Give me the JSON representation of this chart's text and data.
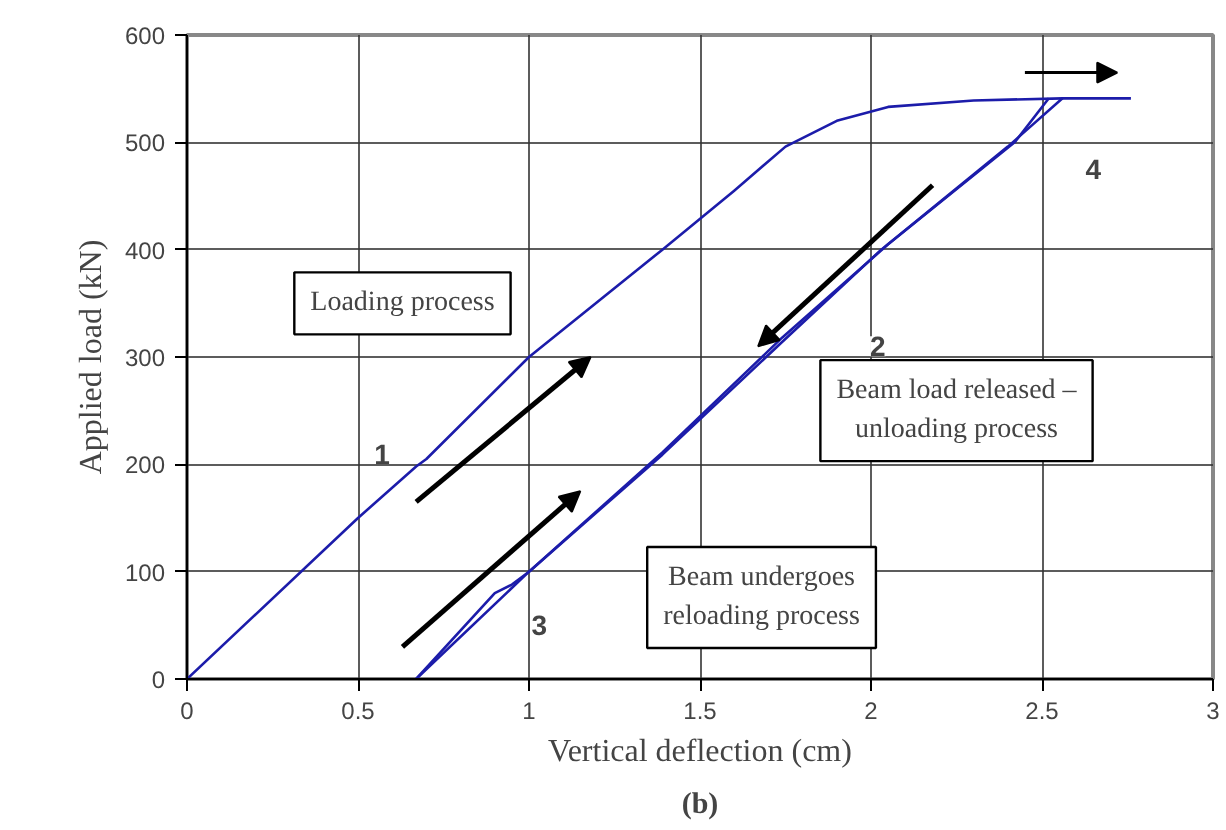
{
  "chart_data": {
    "type": "line",
    "xlabel": "Vertical deflection (cm)",
    "ylabel": "Applied load (kN)",
    "xlim": [
      0,
      3
    ],
    "ylim": [
      0,
      600
    ],
    "xticks": [
      0,
      0.5,
      1,
      1.5,
      2,
      2.5,
      3
    ],
    "yticks": [
      0,
      100,
      200,
      300,
      400,
      500,
      600
    ],
    "grid": true,
    "marker": "none",
    "line_style": "solid",
    "series": [
      {
        "color": "#1c1caa",
        "x": [
          0,
          0.5,
          0.67,
          0.7,
          1.0,
          1.39,
          1.6,
          1.75,
          1.9,
          2.05,
          2.3,
          2.56,
          2.76
        ],
        "values": [
          0,
          150,
          198,
          205,
          300,
          400,
          455,
          496,
          520,
          533,
          539,
          541,
          541
        ]
      },
      {
        "color": "#1c1caa",
        "x": [
          2.56,
          2.4,
          2.03,
          1.74,
          1.39,
          1.0,
          0.67
        ],
        "values": [
          541,
          496,
          400,
          314,
          209,
          100,
          0
        ]
      },
      {
        "color": "#1c1caa",
        "x": [
          0.67,
          0.9,
          0.95,
          1.0,
          1.39,
          1.74,
          2.05,
          2.42,
          2.52
        ],
        "values": [
          0,
          80,
          88,
          100,
          211,
          318,
          405,
          500,
          541
        ]
      }
    ],
    "annotations": [
      "Loading process",
      "Beam load released –\nunloading process",
      "Beam undergoes\nreloading process",
      {
        "text": "1",
        "x": 0.57,
        "y": 210
      },
      {
        "text": "2",
        "x": 2.02,
        "y": 310
      },
      {
        "text": "3",
        "x": 1.03,
        "y": 50
      },
      {
        "text": "4",
        "x": 2.65,
        "y": 475
      },
      "(b)"
    ]
  }
}
